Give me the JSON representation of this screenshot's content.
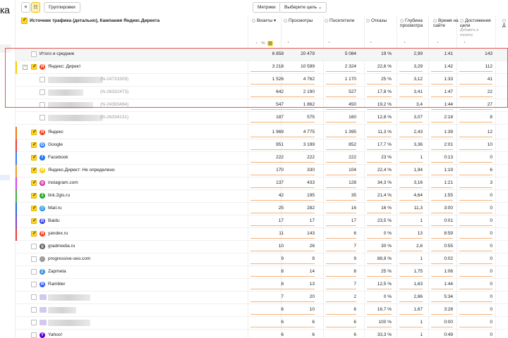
{
  "app": {
    "title_fragment": "ка"
  },
  "toolbar": {
    "grouping_label": "Группировки",
    "metrics_label": "Метрики",
    "goal_label": "Выберите цель"
  },
  "header": {
    "dimension_label": "Источник трафика (детально), Кампания Яндекс.Директа",
    "columns": [
      {
        "label": "Визиты",
        "sorted": true
      },
      {
        "label": "Просмотры"
      },
      {
        "label": "Посетители"
      },
      {
        "label": "Отказы"
      },
      {
        "label": "Глубина просмотра"
      },
      {
        "label": "Время на сайте"
      },
      {
        "label": "Достижения цели",
        "sub": "Добавить в корзину"
      },
      {
        "label": "Д"
      }
    ]
  },
  "rows": [
    {
      "kind": "total",
      "name": "Итого и средние",
      "values": [
        "6 858",
        "20 479",
        "5 084",
        "19 %",
        "2,99",
        "1:41",
        "143"
      ]
    },
    {
      "kind": "parent",
      "name": "Яндекс: Директ",
      "icon": "yandex-icon",
      "color": "#ffcc00",
      "values": [
        "3 218",
        "10 599",
        "2 324",
        "22,6 %",
        "3,29",
        "1:42",
        "112"
      ]
    },
    {
      "kind": "child",
      "name": "(N-24733309)",
      "values": [
        "1 526",
        "4 762",
        "1 170",
        "25 %",
        "3,12",
        "1:33",
        "41"
      ]
    },
    {
      "kind": "child",
      "name": "(N-26332473)",
      "values": [
        "642",
        "2 190",
        "527",
        "17,8 %",
        "3,41",
        "1:47",
        "22"
      ]
    },
    {
      "kind": "child",
      "name": "(N-24393494)",
      "values": [
        "547",
        "1 862",
        "450",
        "19,2 %",
        "3,4",
        "1:44",
        "27"
      ]
    },
    {
      "kind": "child",
      "name": "(N-26334131)",
      "values": [
        "187",
        "575",
        "160",
        "12,8 %",
        "3,07",
        "2:18",
        "8"
      ]
    },
    {
      "kind": "source",
      "name": "Яндекс",
      "icon": "yandex-icon",
      "color": "#f27e1a",
      "values": [
        "1 969",
        "4 775",
        "1 395",
        "11,3 %",
        "2,43",
        "1:39",
        "12"
      ]
    },
    {
      "kind": "source",
      "name": "Google",
      "icon": "google-icon",
      "color": "#e84040",
      "values": [
        "951",
        "3 199",
        "852",
        "17,7 %",
        "3,36",
        "2:01",
        "10"
      ]
    },
    {
      "kind": "source",
      "name": "Facebook",
      "icon": "facebook-icon",
      "color": "#3b82f6",
      "values": [
        "222",
        "222",
        "222",
        "23 %",
        "1",
        "0:13",
        "0"
      ]
    },
    {
      "kind": "source",
      "name": "Яндекс.Директ: Не определено",
      "icon": "yandex-direct-icon",
      "color": "#f0a030",
      "values": [
        "170",
        "330",
        "104",
        "22,4 %",
        "1,94",
        "1:19",
        "6"
      ]
    },
    {
      "kind": "source",
      "name": "instagram.com",
      "icon": "instagram-icon",
      "color": "#d946ef",
      "values": [
        "137",
        "433",
        "128",
        "34,3 %",
        "3,16",
        "1:21",
        "3"
      ]
    },
    {
      "kind": "source",
      "name": "link.2gis.ru",
      "icon": "2gis-icon",
      "color": "#4caf50",
      "values": [
        "42",
        "195",
        "35",
        "21,4 %",
        "4,64",
        "1:55",
        "0"
      ]
    },
    {
      "kind": "source",
      "name": "Mail.ru",
      "icon": "mailru-icon",
      "color": "#2d6fd6",
      "values": [
        "25",
        "282",
        "16",
        "16 %",
        "11,3",
        "3:00",
        "0"
      ]
    },
    {
      "kind": "source",
      "name": "Baidu",
      "icon": "baidu-icon",
      "color": "#7c4dcc",
      "values": [
        "17",
        "17",
        "17",
        "23,5 %",
        "1",
        "0:01",
        "0"
      ]
    },
    {
      "kind": "source",
      "name": "yandex.ru",
      "icon": "yandex-icon",
      "color": "#e84040",
      "values": [
        "11",
        "143",
        "6",
        "0 %",
        "13",
        "8:59",
        "0"
      ]
    },
    {
      "kind": "source",
      "name": "gradmedia.ru",
      "icon": "gradmedia-icon",
      "color": "",
      "values": [
        "10",
        "26",
        "7",
        "30 %",
        "2,6",
        "0:55",
        "0"
      ]
    },
    {
      "kind": "source",
      "name": "progressive-seo.com",
      "icon": "globe-icon",
      "color": "",
      "values": [
        "9",
        "9",
        "9",
        "88,9 %",
        "1",
        "0:02",
        "0"
      ]
    },
    {
      "kind": "source",
      "name": "Zapmeta",
      "icon": "zapmeta-icon",
      "color": "",
      "values": [
        "8",
        "14",
        "8",
        "25 %",
        "1,75",
        "1:06",
        "0"
      ]
    },
    {
      "kind": "source",
      "name": "Rambler",
      "icon": "rambler-icon",
      "color": "",
      "values": [
        "8",
        "13",
        "7",
        "12,5 %",
        "1,63",
        "1:44",
        "0"
      ]
    },
    {
      "kind": "source",
      "name": "",
      "icon": "blurred-icon",
      "color": "",
      "values": [
        "7",
        "20",
        "2",
        "0 %",
        "2,86",
        "5:34",
        "0"
      ]
    },
    {
      "kind": "source",
      "name": "",
      "icon": "blurred-icon",
      "color": "",
      "values": [
        "6",
        "10",
        "6",
        "16,7 %",
        "1,67",
        "3:28",
        "0"
      ]
    },
    {
      "kind": "source",
      "name": "",
      "icon": "blurred-icon",
      "color": "",
      "values": [
        "6",
        "6",
        "6",
        "100 %",
        "1",
        "0:00",
        "0"
      ]
    },
    {
      "kind": "source",
      "name": "Yahoo!",
      "icon": "yahoo-icon",
      "color": "",
      "values": [
        "6",
        "6",
        "6",
        "33,3 %",
        "1",
        "0:49",
        "0"
      ]
    }
  ]
}
